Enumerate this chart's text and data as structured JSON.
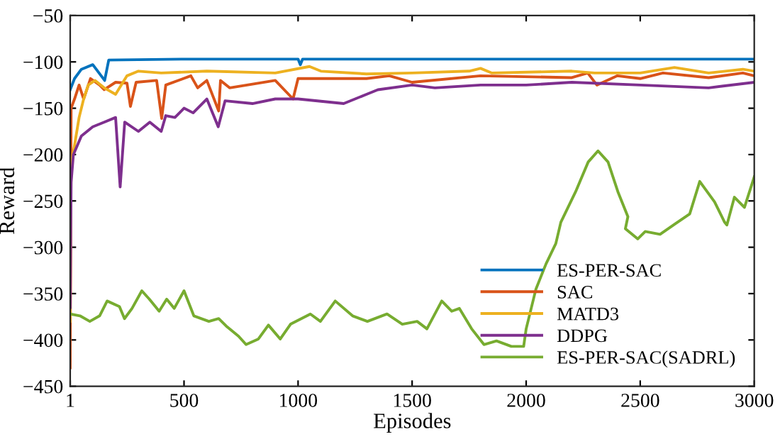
{
  "chart_data": {
    "type": "line",
    "xlabel": "Episodes",
    "ylabel": "Reward",
    "xlim": [
      1,
      3000
    ],
    "xticks": [
      1,
      500,
      1000,
      1500,
      2000,
      2500,
      3000
    ],
    "ylim": [
      -450,
      -50
    ],
    "yticks": [
      -450,
      -400,
      -350,
      -300,
      -250,
      -200,
      -150,
      -100,
      -50
    ],
    "grid": false,
    "legend": "bottom right",
    "marker": "none",
    "line_style": "solid",
    "series": [
      {
        "name": "ES-PER-SAC",
        "color": "#0072bd",
        "x": [
          1,
          20,
          50,
          100,
          152,
          170,
          500,
          1000,
          1010,
          1020,
          2000,
          3000
        ],
        "values": [
          -130,
          -118,
          -108,
          -103,
          -120,
          -98,
          -97,
          -97,
          -103,
          -97,
          -97,
          -97
        ]
      },
      {
        "name": "SAC",
        "color": "#d95319",
        "x": [
          1,
          5,
          20,
          40,
          60,
          90,
          130,
          150,
          200,
          250,
          265,
          290,
          380,
          402,
          420,
          530,
          560,
          600,
          652,
          660,
          700,
          900,
          978,
          1000,
          1300,
          1400,
          1500,
          1800,
          2200,
          2270,
          2310,
          2400,
          2500,
          2550,
          2600,
          2800,
          2950,
          3000
        ],
        "values": [
          -430,
          -150,
          -140,
          -125,
          -140,
          -118,
          -125,
          -130,
          -122,
          -123,
          -148,
          -122,
          -120,
          -161,
          -125,
          -115,
          -128,
          -120,
          -153,
          -120,
          -128,
          -120,
          -140,
          -118,
          -118,
          -115,
          -122,
          -115,
          -117,
          -112,
          -125,
          -115,
          -118,
          -115,
          -112,
          -117,
          -112,
          -115
        ]
      },
      {
        "name": "MATD3",
        "color": "#edb120",
        "x": [
          1,
          5,
          20,
          40,
          60,
          80,
          110,
          150,
          200,
          250,
          300,
          400,
          600,
          900,
          1050,
          1100,
          1300,
          1500,
          1750,
          1800,
          1850,
          2200,
          2300,
          2500,
          2650,
          2800,
          2950,
          3000
        ],
        "values": [
          -380,
          -210,
          -190,
          -160,
          -140,
          -125,
          -120,
          -128,
          -135,
          -115,
          -110,
          -112,
          -110,
          -112,
          -105,
          -110,
          -113,
          -112,
          -110,
          -107,
          -112,
          -110,
          -112,
          -112,
          -106,
          -112,
          -108,
          -110
        ]
      },
      {
        "name": "DDPG",
        "color": "#7e2f8e",
        "x": [
          1,
          5,
          15,
          50,
          100,
          150,
          200,
          220,
          240,
          300,
          350,
          400,
          420,
          460,
          500,
          540,
          600,
          650,
          680,
          800,
          900,
          1000,
          1200,
          1300,
          1350,
          1500,
          1600,
          1800,
          2000,
          2200,
          2500,
          2800,
          3000
        ],
        "values": [
          -365,
          -230,
          -200,
          -180,
          -170,
          -165,
          -160,
          -235,
          -165,
          -175,
          -165,
          -175,
          -158,
          -160,
          -150,
          -155,
          -140,
          -170,
          -142,
          -145,
          -140,
          -140,
          -145,
          -135,
          -130,
          -125,
          -128,
          -125,
          -125,
          -122,
          -125,
          -128,
          -122
        ]
      },
      {
        "name": "ES-PER-SAC(SADRL)",
        "color": "#77ac30",
        "x": [
          1,
          44,
          87,
          130,
          163,
          217,
          239,
          272,
          315,
          348,
          391,
          424,
          457,
          500,
          543,
          609,
          652,
          685,
          739,
          772,
          826,
          870,
          922,
          967,
          1054,
          1098,
          1163,
          1239,
          1304,
          1390,
          1457,
          1522,
          1565,
          1630,
          1674,
          1707,
          1761,
          1815,
          1870,
          1935,
          1989,
          2000,
          2043,
          2087,
          2130,
          2152,
          2217,
          2272,
          2315,
          2359,
          2402,
          2446,
          2435,
          2489,
          2522,
          2587,
          2652,
          2717,
          2761,
          2826,
          2870,
          2880,
          2913,
          2957,
          3000
        ],
        "values": [
          -372,
          -374,
          -380,
          -374,
          -358,
          -364,
          -377,
          -366,
          -347,
          -356,
          -369,
          -356,
          -366,
          -347,
          -374,
          -380,
          -377,
          -385,
          -396,
          -405,
          -399,
          -384,
          -399,
          -383,
          -372,
          -380,
          -358,
          -374,
          -380,
          -372,
          -383,
          -380,
          -388,
          -358,
          -369,
          -366,
          -388,
          -405,
          -401,
          -407,
          -407,
          -388,
          -345,
          -318,
          -296,
          -273,
          -240,
          -208,
          -196,
          -208,
          -240,
          -267,
          -280,
          -291,
          -283,
          -286,
          -275,
          -264,
          -229,
          -251,
          -273,
          -276,
          -246,
          -257,
          -224
        ]
      }
    ]
  }
}
